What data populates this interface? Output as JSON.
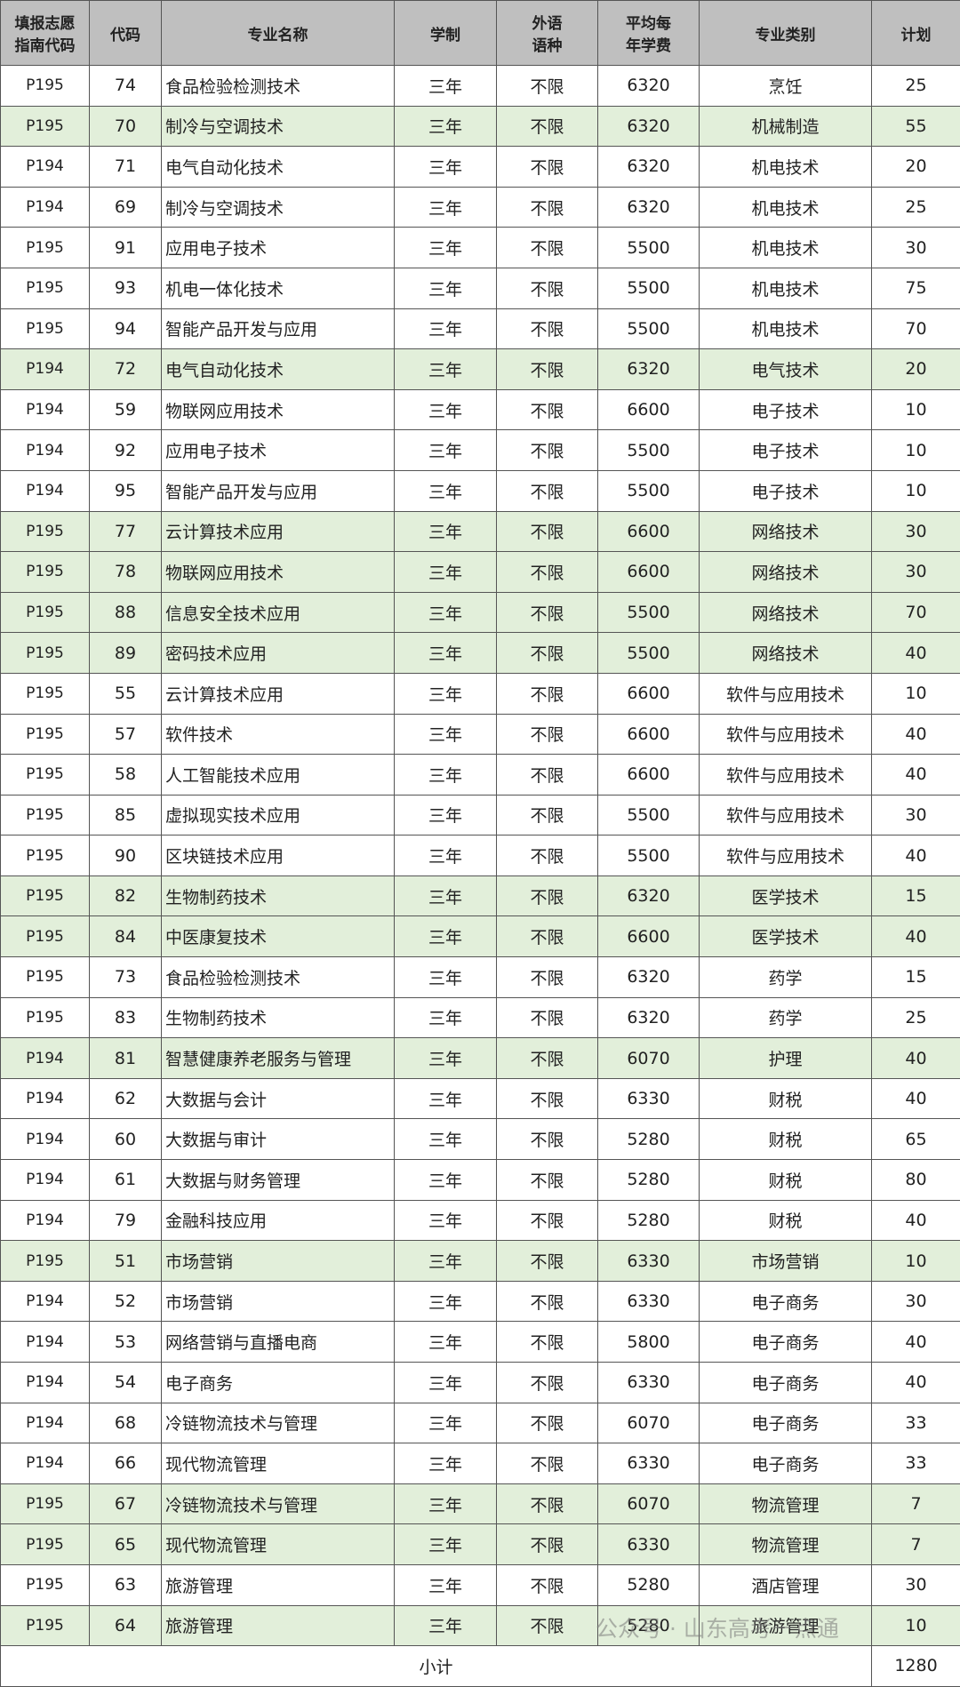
{
  "table": {
    "header": [
      "填报志愿指南代码",
      "代码",
      "专业名称",
      "学制",
      "外语语种",
      "平均每年学费",
      "专业类别",
      "计划"
    ],
    "rows": [
      [
        "P195",
        "74",
        "食品检验检测技术",
        "三年",
        "不限",
        "6320",
        "烹饪",
        "25"
      ],
      [
        "P195",
        "70",
        "制冷与空调技术",
        "三年",
        "不限",
        "6320",
        "机械制造",
        "55"
      ],
      [
        "P194",
        "71",
        "电气自动化技术",
        "三年",
        "不限",
        "6320",
        "机电技术",
        "20"
      ],
      [
        "P194",
        "69",
        "制冷与空调技术",
        "三年",
        "不限",
        "6320",
        "机电技术",
        "25"
      ],
      [
        "P195",
        "91",
        "应用电子技术",
        "三年",
        "不限",
        "5500",
        "机电技术",
        "30"
      ],
      [
        "P195",
        "93",
        "机电一体化技术",
        "三年",
        "不限",
        "5500",
        "机电技术",
        "75"
      ],
      [
        "P195",
        "94",
        "智能产品开发与应用",
        "三年",
        "不限",
        "5500",
        "机电技术",
        "70"
      ],
      [
        "P194",
        "72",
        "电气自动化技术",
        "三年",
        "不限",
        "6320",
        "电气技术",
        "20"
      ],
      [
        "P194",
        "59",
        "物联网应用技术",
        "三年",
        "不限",
        "6600",
        "电子技术",
        "10"
      ],
      [
        "P194",
        "92",
        "应用电子技术",
        "三年",
        "不限",
        "5500",
        "电子技术",
        "10"
      ],
      [
        "P194",
        "95",
        "智能产品开发与应用",
        "三年",
        "不限",
        "5500",
        "电子技术",
        "10"
      ],
      [
        "P195",
        "77",
        "云计算技术应用",
        "三年",
        "不限",
        "6600",
        "网络技术",
        "30"
      ],
      [
        "P195",
        "78",
        "物联网应用技术",
        "三年",
        "不限",
        "6600",
        "网络技术",
        "30"
      ],
      [
        "P195",
        "88",
        "信息安全技术应用",
        "三年",
        "不限",
        "5500",
        "网络技术",
        "70"
      ],
      [
        "P195",
        "89",
        "密码技术应用",
        "三年",
        "不限",
        "5500",
        "网络技术",
        "40"
      ],
      [
        "P195",
        "55",
        "云计算技术应用",
        "三年",
        "不限",
        "6600",
        "软件与应用技术",
        "10"
      ],
      [
        "P195",
        "57",
        "软件技术",
        "三年",
        "不限",
        "6600",
        "软件与应用技术",
        "40"
      ],
      [
        "P195",
        "58",
        "人工智能技术应用",
        "三年",
        "不限",
        "6600",
        "软件与应用技术",
        "40"
      ],
      [
        "P195",
        "85",
        "虚拟现实技术应用",
        "三年",
        "不限",
        "5500",
        "软件与应用技术",
        "30"
      ],
      [
        "P195",
        "90",
        "区块链技术应用",
        "三年",
        "不限",
        "5500",
        "软件与应用技术",
        "40"
      ],
      [
        "P195",
        "82",
        "生物制药技术",
        "三年",
        "不限",
        "6320",
        "医学技术",
        "15"
      ],
      [
        "P195",
        "84",
        "中医康复技术",
        "三年",
        "不限",
        "6600",
        "医学技术",
        "40"
      ],
      [
        "P195",
        "73",
        "食品检验检测技术",
        "三年",
        "不限",
        "6320",
        "药学",
        "15"
      ],
      [
        "P195",
        "83",
        "生物制药技术",
        "三年",
        "不限",
        "6320",
        "药学",
        "25"
      ],
      [
        "P194",
        "81",
        "智慧健康养老服务与管理",
        "三年",
        "不限",
        "6070",
        "护理",
        "40"
      ],
      [
        "P194",
        "62",
        "大数据与会计",
        "三年",
        "不限",
        "6330",
        "财税",
        "40"
      ],
      [
        "P194",
        "60",
        "大数据与审计",
        "三年",
        "不限",
        "5280",
        "财税",
        "65"
      ],
      [
        "P194",
        "61",
        "大数据与财务管理",
        "三年",
        "不限",
        "5280",
        "财税",
        "80"
      ],
      [
        "P194",
        "79",
        "金融科技应用",
        "三年",
        "不限",
        "5280",
        "财税",
        "40"
      ],
      [
        "P195",
        "51",
        "市场营销",
        "三年",
        "不限",
        "6330",
        "市场营销",
        "10"
      ],
      [
        "P194",
        "52",
        "市场营销",
        "三年",
        "不限",
        "6330",
        "电子商务",
        "30"
      ],
      [
        "P194",
        "53",
        "网络营销与直播电商",
        "三年",
        "不限",
        "5800",
        "电子商务",
        "40"
      ],
      [
        "P194",
        "54",
        "电子商务",
        "三年",
        "不限",
        "6330",
        "电子商务",
        "40"
      ],
      [
        "P194",
        "68",
        "冷链物流技术与管理",
        "三年",
        "不限",
        "6070",
        "电子商务",
        "33"
      ],
      [
        "P194",
        "66",
        "现代物流管理",
        "三年",
        "不限",
        "6330",
        "电子商务",
        "33"
      ],
      [
        "P195",
        "67",
        "冷链物流技术与管理",
        "三年",
        "不限",
        "6070",
        "物流管理",
        "7"
      ],
      [
        "P195",
        "65",
        "现代物流管理",
        "三年",
        "不限",
        "6330",
        "物流管理",
        "7"
      ],
      [
        "P195",
        "63",
        "旅游管理",
        "三年",
        "不限",
        "5280",
        "酒店管理",
        "30"
      ],
      [
        "P195",
        "64",
        "旅游管理",
        "三年",
        "不限",
        "5280",
        "旅游管理",
        "10"
      ]
    ],
    "highlighted_rows": [
      1,
      7,
      11,
      12,
      13,
      14,
      20,
      21,
      24,
      29,
      35,
      36,
      38
    ],
    "highlight_color": "#e2efda",
    "subtotal": {
      "label": "小计",
      "value": "1280"
    }
  },
  "watermark": "公众号 · 山东高考一点通"
}
